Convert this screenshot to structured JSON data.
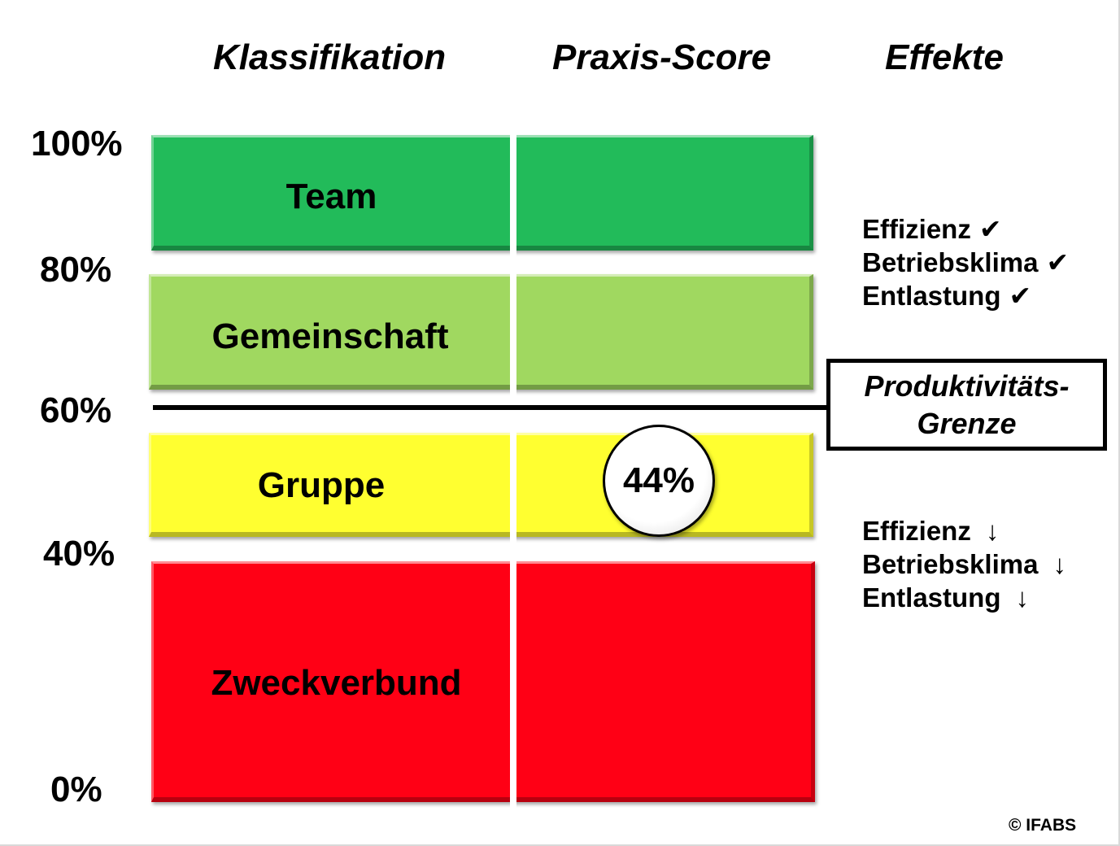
{
  "headers": {
    "classification": "Klassifikation",
    "score": "Praxis-Score",
    "effects": "Effekte"
  },
  "y_axis": [
    "100%",
    "80%",
    "60%",
    "40%",
    "0%"
  ],
  "levels": [
    {
      "name": "Team",
      "color": "#22bb5a",
      "range": [
        80,
        100
      ]
    },
    {
      "name": "Gemeinschaft",
      "color": "#a0d860",
      "range": [
        60,
        80
      ]
    },
    {
      "name": "Gruppe",
      "color": "#ffff30",
      "range": [
        40,
        60
      ]
    },
    {
      "name": "Zweckverbund",
      "color": "#ff0015",
      "range": [
        0,
        40
      ]
    }
  ],
  "threshold": {
    "value": 60,
    "label_line1": "Produktivitäts-",
    "label_line2": "Grenze"
  },
  "score": {
    "value": 44,
    "label": "44%"
  },
  "effects_high": [
    {
      "text": "Effizienz",
      "mark": "✔"
    },
    {
      "text": "Betriebsklima",
      "mark": "✔"
    },
    {
      "text": "Entlastung",
      "mark": "✔"
    }
  ],
  "effects_low": [
    {
      "text": "Effizienz",
      "mark": "↓"
    },
    {
      "text": "Betriebsklima",
      "mark": "↓"
    },
    {
      "text": "Entlastung",
      "mark": "↓"
    }
  ],
  "copyright": "© IFABS"
}
